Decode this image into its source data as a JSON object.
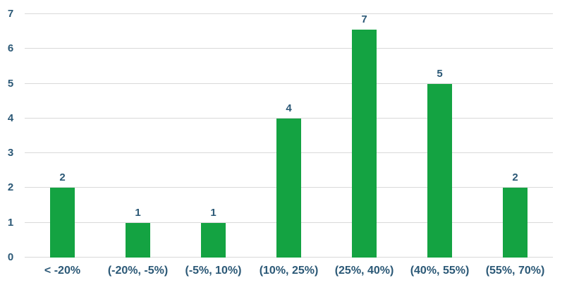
{
  "chart_data": {
    "type": "bar",
    "title": "",
    "xlabel": "",
    "ylabel": "",
    "categories": [
      "< -20%",
      "(-20%, -5%)",
      "(-5%, 10%)",
      "(10%, 25%)",
      "(25%, 40%)",
      "(40%, 55%)",
      "(55%, 70%)"
    ],
    "values": [
      2,
      1,
      1,
      4,
      7,
      5,
      2
    ],
    "ylim": [
      0,
      7
    ],
    "ytick_step": 1,
    "yticks": [
      0,
      1,
      2,
      3,
      4,
      5,
      6,
      7
    ],
    "grid": true,
    "legend": false,
    "data_labels": true,
    "colors": {
      "bar": "#14a342",
      "text": "#2b5876",
      "gridline": "#d9d9d9",
      "background": "#ffffff"
    }
  }
}
